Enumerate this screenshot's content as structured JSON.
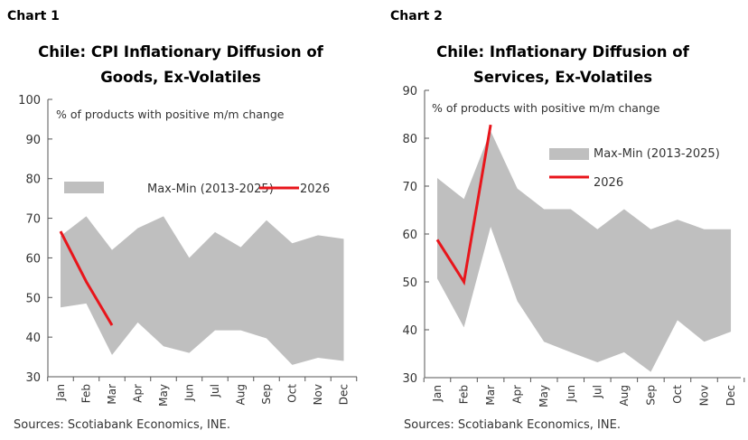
{
  "chart_data": [
    {
      "label": "Chart 1",
      "type": "area",
      "title": [
        "Chile: CPI Inflationary Diffusion of",
        "Goods, Ex-Volatiles"
      ],
      "ylabel": "% of products with positive m/m change",
      "ylim": [
        30,
        100
      ],
      "yticks": [
        30,
        40,
        50,
        60,
        70,
        80,
        90,
        100
      ],
      "categories": [
        "Jan",
        "Feb",
        "Mar",
        "Apr",
        "May",
        "Jun",
        "Jul",
        "Aug",
        "Sep",
        "Oct",
        "Nov",
        "Dec"
      ],
      "band": {
        "name": "Max-Min (2013-2025)",
        "color": "#bfbfbf",
        "max": [
          65.5,
          70.5,
          62,
          67.5,
          70.5,
          60,
          66.5,
          62.7,
          69.5,
          63.7,
          65.7,
          64.8
        ],
        "min": [
          47.5,
          48.5,
          35.5,
          43.7,
          37.7,
          36,
          41.7,
          41.7,
          39.7,
          33,
          34.8,
          34
        ]
      },
      "line": {
        "name": "2026",
        "color": "#e8151b",
        "values": [
          66.7,
          54,
          43
        ]
      },
      "legend": "top",
      "source": "Sources: Scotiabank Economics, INE."
    },
    {
      "label": "Chart 2",
      "type": "area",
      "title": [
        "Chile: Inflationary Diffusion of",
        "Services, Ex-Volatiles"
      ],
      "ylabel": "% of products with positive m/m change",
      "ylim": [
        30,
        90
      ],
      "yticks": [
        30,
        40,
        50,
        60,
        70,
        80,
        90
      ],
      "categories": [
        "Jan",
        "Feb",
        "Mar",
        "Apr",
        "May",
        "Jun",
        "Jul",
        "Aug",
        "Sep",
        "Oct",
        "Nov",
        "Dec"
      ],
      "band": {
        "name": "Max-Min (2013-2025)",
        "color": "#bfbfbf",
        "max": [
          71.7,
          67.3,
          81.5,
          69.5,
          65.2,
          65.2,
          61,
          65.2,
          61,
          63,
          61,
          61
        ],
        "min": [
          50.7,
          40.5,
          61.5,
          46,
          37.5,
          35.3,
          33.2,
          35.3,
          31.2,
          42,
          37.5,
          39.6
        ]
      },
      "line": {
        "name": "2026",
        "color": "#e8151b",
        "values": [
          58.8,
          50,
          82.8
        ]
      },
      "legend": "right",
      "source": "Sources: Scotiabank Economics, INE."
    }
  ]
}
